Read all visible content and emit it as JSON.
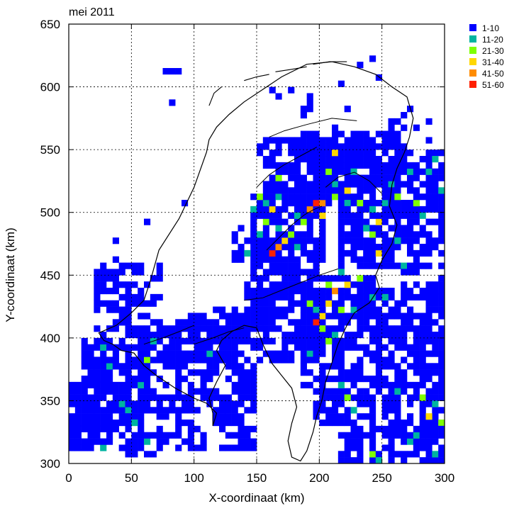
{
  "chart_data": {
    "type": "heatmap",
    "title": "mei 2011",
    "xlabel": "X-coordinaat (km)",
    "ylabel": "Y-coordinaat (km)",
    "xlim": [
      0,
      300
    ],
    "ylim": [
      300,
      650
    ],
    "x_ticks": [
      0,
      50,
      100,
      150,
      200,
      250,
      300
    ],
    "y_ticks": [
      300,
      350,
      400,
      450,
      500,
      550,
      600,
      650
    ],
    "grid": true,
    "cell_size_km": 5,
    "legend_position": "top-right",
    "legend": [
      {
        "label": "1-10",
        "color": "#0000ff"
      },
      {
        "label": "11-20",
        "color": "#00b4a0"
      },
      {
        "label": "21-30",
        "color": "#7fff00"
      },
      {
        "label": "31-40",
        "color": "#ffd700"
      },
      {
        "label": "41-50",
        "color": "#ff8c00"
      },
      {
        "label": "51-60",
        "color": "#ff2000"
      }
    ],
    "coverage_regions": [
      [
        0,
        310,
        60,
        365,
        0.85
      ],
      [
        10,
        360,
        60,
        400,
        0.7
      ],
      [
        20,
        395,
        75,
        460,
        0.5
      ],
      [
        55,
        380,
        135,
        415,
        0.7
      ],
      [
        60,
        340,
        150,
        380,
        0.6
      ],
      [
        60,
        310,
        110,
        345,
        0.35
      ],
      [
        95,
        380,
        150,
        420,
        0.6
      ],
      [
        115,
        330,
        140,
        345,
        0.8
      ],
      [
        135,
        395,
        205,
        425,
        0.7
      ],
      [
        115,
        410,
        160,
        425,
        0.6
      ],
      [
        140,
        420,
        200,
        460,
        0.75
      ],
      [
        145,
        460,
        205,
        520,
        0.8
      ],
      [
        130,
        460,
        150,
        490,
        0.5
      ],
      [
        155,
        510,
        225,
        560,
        0.8
      ],
      [
        180,
        520,
        270,
        565,
        0.75
      ],
      [
        185,
        575,
        195,
        595,
        0.55
      ],
      [
        255,
        565,
        270,
        580,
        0.5
      ],
      [
        205,
        505,
        265,
        530,
        0.7
      ],
      [
        215,
        455,
        300,
        510,
        0.75
      ],
      [
        250,
        510,
        300,
        550,
        0.8
      ],
      [
        265,
        440,
        300,
        460,
        0.5
      ],
      [
        190,
        400,
        245,
        450,
        0.85
      ],
      [
        230,
        400,
        300,
        440,
        0.7
      ],
      [
        150,
        380,
        200,
        400,
        0.55
      ],
      [
        185,
        360,
        250,
        400,
        0.65
      ],
      [
        240,
        360,
        300,
        400,
        0.7
      ],
      [
        195,
        330,
        300,
        360,
        0.6
      ],
      [
        215,
        300,
        300,
        330,
        0.7
      ],
      [
        120,
        310,
        150,
        330,
        0.6
      ],
      [
        130,
        355,
        150,
        365,
        0.5
      ],
      [
        20,
        330,
        50,
        345,
        0.6
      ],
      [
        40,
        305,
        75,
        320,
        0.45
      ],
      [
        150,
        545,
        165,
        555,
        0.6
      ]
    ],
    "hotspots": [
      [
        165,
        510,
        2
      ],
      [
        165,
        525,
        3
      ],
      [
        160,
        500,
        4
      ],
      [
        155,
        490,
        3
      ],
      [
        150,
        480,
        2
      ],
      [
        165,
        485,
        2
      ],
      [
        170,
        475,
        4
      ],
      [
        165,
        470,
        5
      ],
      [
        160,
        465,
        6
      ],
      [
        175,
        480,
        3
      ],
      [
        180,
        495,
        2
      ],
      [
        185,
        490,
        3
      ],
      [
        190,
        500,
        5
      ],
      [
        195,
        505,
        6
      ],
      [
        200,
        505,
        5
      ],
      [
        200,
        495,
        4
      ],
      [
        210,
        545,
        4
      ],
      [
        205,
        530,
        3
      ],
      [
        210,
        520,
        2
      ],
      [
        210,
        510,
        3
      ],
      [
        220,
        515,
        4
      ],
      [
        230,
        505,
        3
      ],
      [
        240,
        500,
        2
      ],
      [
        245,
        490,
        4
      ],
      [
        240,
        480,
        3
      ],
      [
        245,
        465,
        4
      ],
      [
        235,
        485,
        2
      ],
      [
        260,
        510,
        3
      ],
      [
        270,
        530,
        2
      ],
      [
        285,
        530,
        2
      ],
      [
        290,
        540,
        2
      ],
      [
        275,
        505,
        3
      ],
      [
        260,
        475,
        2
      ],
      [
        215,
        450,
        2
      ],
      [
        205,
        440,
        3
      ],
      [
        210,
        435,
        5
      ],
      [
        205,
        425,
        4
      ],
      [
        200,
        415,
        4
      ],
      [
        195,
        410,
        6
      ],
      [
        200,
        405,
        3
      ],
      [
        215,
        420,
        3
      ],
      [
        220,
        440,
        4
      ],
      [
        230,
        445,
        3
      ],
      [
        240,
        430,
        2
      ],
      [
        195,
        420,
        2
      ],
      [
        210,
        400,
        2
      ],
      [
        225,
        420,
        2
      ],
      [
        250,
        430,
        2
      ],
      [
        190,
        425,
        3
      ],
      [
        280,
        350,
        3
      ],
      [
        285,
        335,
        4
      ],
      [
        290,
        345,
        2
      ],
      [
        275,
        320,
        2
      ],
      [
        295,
        330,
        3
      ],
      [
        270,
        315,
        2
      ],
      [
        240,
        305,
        3
      ],
      [
        245,
        300,
        2
      ],
      [
        225,
        340,
        2
      ],
      [
        220,
        350,
        3
      ],
      [
        215,
        360,
        2
      ],
      [
        205,
        395,
        3
      ],
      [
        190,
        385,
        2
      ],
      [
        175,
        480,
        2
      ],
      [
        180,
        470,
        2
      ],
      [
        155,
        505,
        2
      ],
      [
        150,
        510,
        3
      ],
      [
        145,
        500,
        2
      ],
      [
        140,
        465,
        2
      ],
      [
        25,
        390,
        2
      ],
      [
        30,
        375,
        2
      ],
      [
        45,
        340,
        2
      ],
      [
        50,
        330,
        2
      ],
      [
        25,
        310,
        2
      ],
      [
        40,
        345,
        2
      ],
      [
        55,
        360,
        2
      ],
      [
        60,
        315,
        2
      ],
      [
        60,
        380,
        3
      ],
      [
        65,
        395,
        2
      ],
      [
        110,
        385,
        2
      ],
      [
        260,
        355,
        2
      ],
      [
        290,
        305,
        2
      ],
      [
        280,
        495,
        2
      ],
      [
        250,
        505,
        2
      ],
      [
        225,
        530,
        2
      ],
      [
        220,
        505,
        2
      ],
      [
        255,
        520,
        2
      ],
      [
        295,
        515,
        2
      ],
      [
        265,
        455,
        2
      ]
    ],
    "isolated_cells": [
      [
        80,
        610
      ],
      [
        85,
        612
      ],
      [
        80,
        585
      ],
      [
        75,
        610
      ],
      [
        60,
        490
      ],
      [
        90,
        505
      ],
      [
        35,
        460
      ],
      [
        30,
        445
      ],
      [
        35,
        475
      ],
      [
        205,
        555
      ],
      [
        210,
        565
      ],
      [
        220,
        580
      ],
      [
        215,
        600
      ],
      [
        230,
        615
      ],
      [
        240,
        620
      ],
      [
        245,
        605
      ],
      [
        250,
        555
      ],
      [
        255,
        550
      ],
      [
        270,
        580
      ],
      [
        275,
        565
      ],
      [
        285,
        555
      ],
      [
        285,
        570
      ],
      [
        295,
        465
      ],
      [
        160,
        595
      ],
      [
        165,
        590
      ],
      [
        175,
        595
      ]
    ]
  }
}
